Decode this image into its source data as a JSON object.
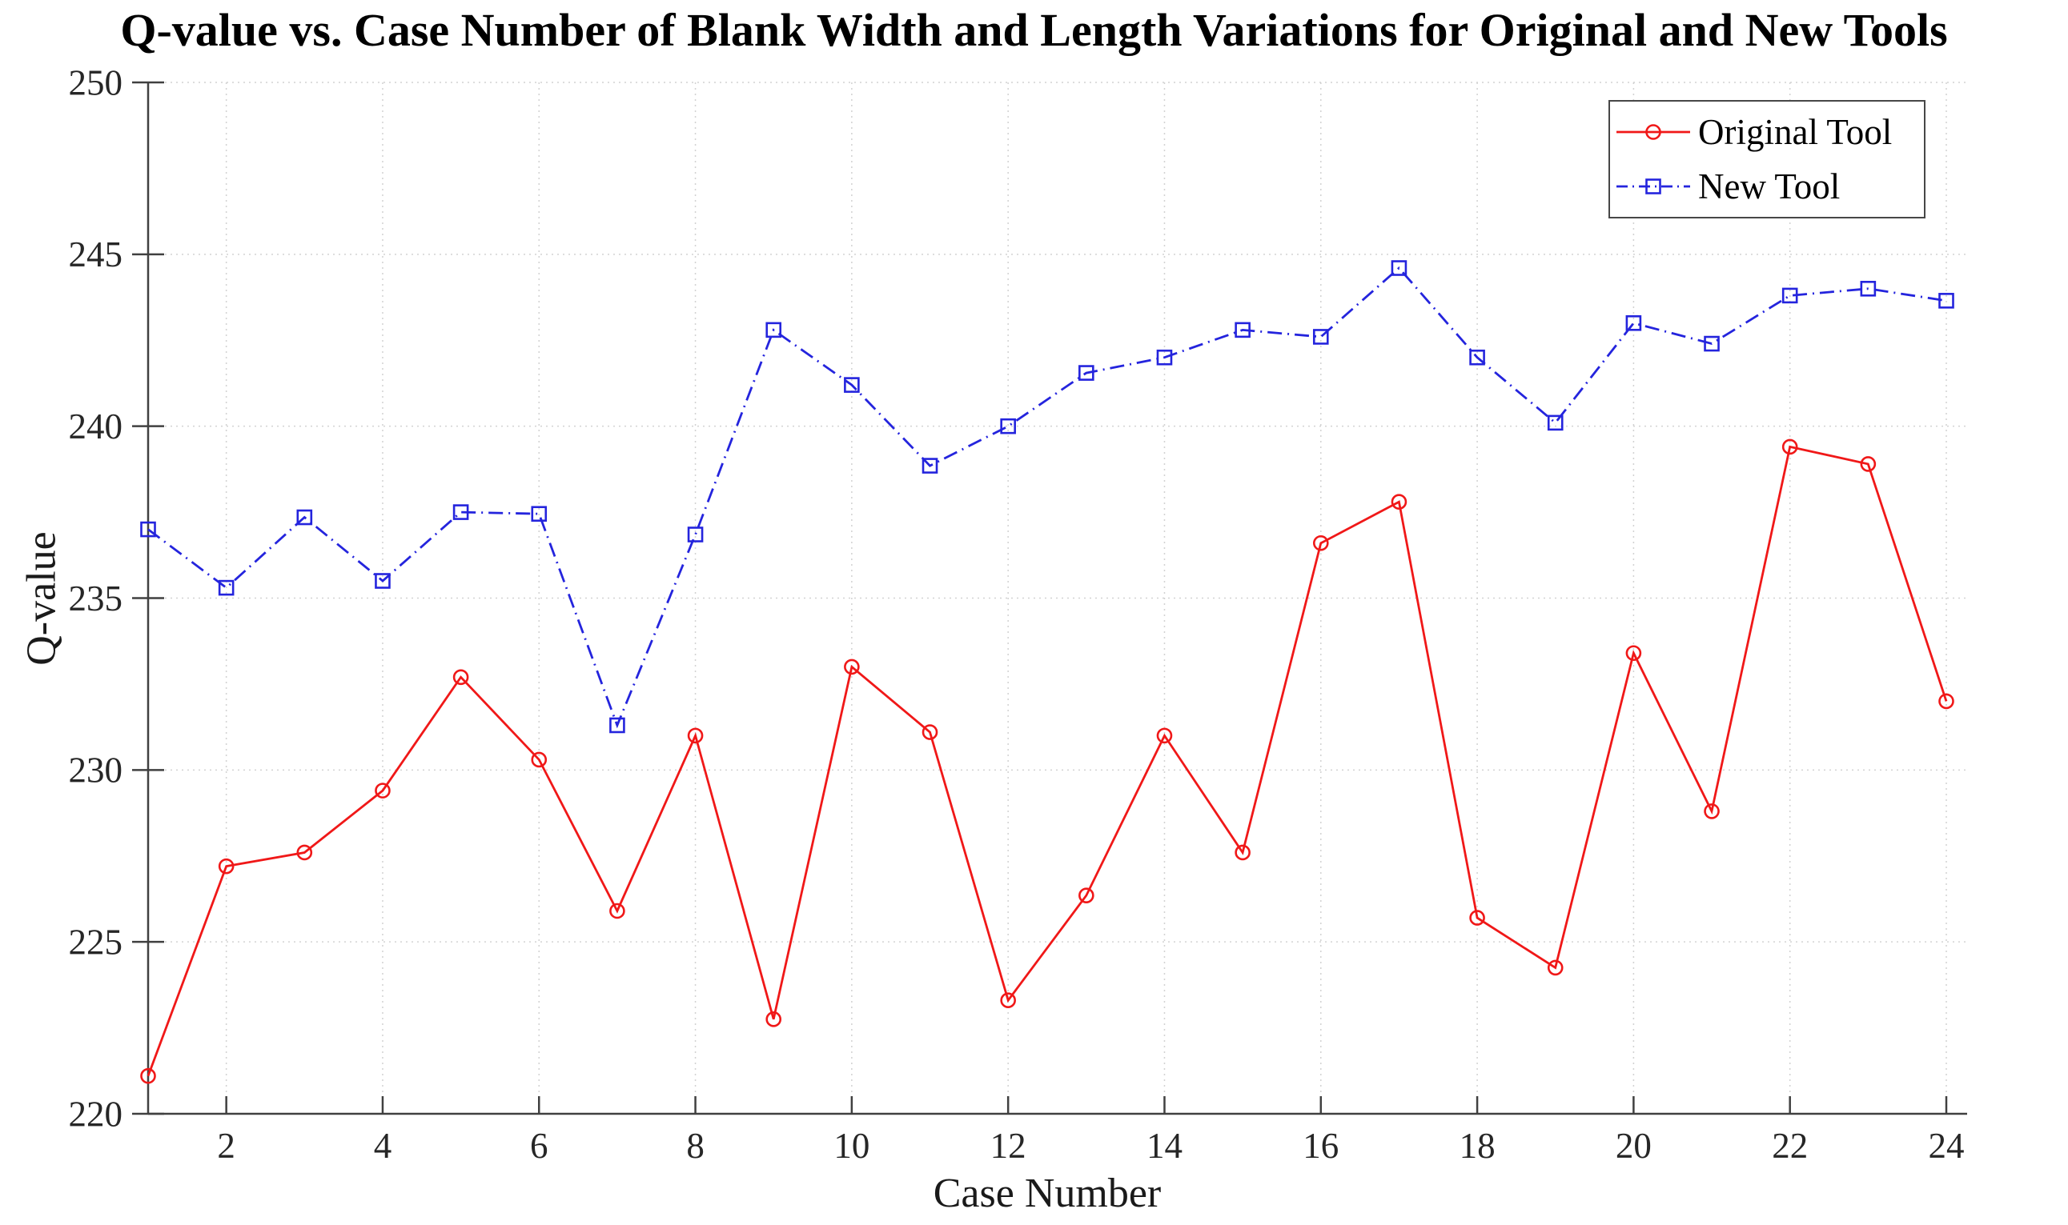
{
  "chart_data": {
    "type": "line",
    "title": "Q-value vs. Case Number of Blank Width and Length Variations for Original and New Tools",
    "xlabel": "Case Number",
    "ylabel": "Q-value",
    "xlim": [
      1,
      24
    ],
    "ylim": [
      220,
      250
    ],
    "x_ticks": [
      2,
      4,
      6,
      8,
      10,
      12,
      14,
      16,
      18,
      20,
      22,
      24
    ],
    "y_ticks": [
      220,
      225,
      230,
      235,
      240,
      245,
      250
    ],
    "grid": true,
    "legend_position": "top-right",
    "x": [
      1,
      2,
      3,
      4,
      5,
      6,
      7,
      8,
      9,
      10,
      11,
      12,
      13,
      14,
      15,
      16,
      17,
      18,
      19,
      20,
      21,
      22,
      23,
      24
    ],
    "series": [
      {
        "name": "Original Tool",
        "color": "#f01818",
        "line_style": "solid",
        "marker": "circle",
        "values": [
          221.1,
          227.2,
          227.6,
          229.4,
          232.7,
          230.3,
          225.9,
          231.0,
          222.75,
          233.0,
          231.1,
          223.3,
          226.35,
          231.0,
          227.6,
          236.6,
          237.8,
          225.7,
          224.25,
          233.4,
          228.8,
          239.4,
          238.9,
          232.0
        ]
      },
      {
        "name": "New Tool",
        "color": "#2424dd",
        "line_style": "dash-dot",
        "marker": "square",
        "values": [
          237.0,
          235.3,
          237.35,
          235.5,
          237.5,
          237.45,
          231.3,
          236.85,
          242.8,
          241.2,
          238.85,
          240.0,
          241.55,
          242.0,
          242.8,
          242.6,
          244.6,
          242.0,
          240.1,
          243.0,
          242.4,
          243.8,
          244.0,
          243.65
        ]
      }
    ],
    "colors": {
      "grid": "#d2d2d2",
      "axis": "#404040",
      "tick_text": "#262626"
    }
  }
}
